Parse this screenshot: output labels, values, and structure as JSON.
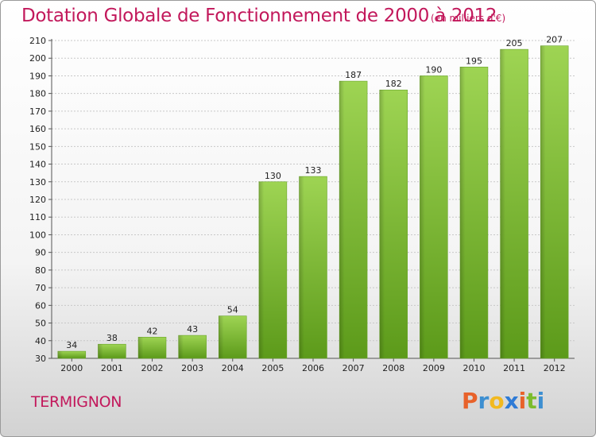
{
  "chart_data": {
    "type": "bar",
    "title": "Dotation Globale de Fonctionnement de 2000 à 2012",
    "subtitle": "(en milliers d'€)",
    "categories": [
      "2000",
      "2001",
      "2002",
      "2003",
      "2004",
      "2005",
      "2006",
      "2007",
      "2008",
      "2009",
      "2010",
      "2011",
      "2012"
    ],
    "values": [
      34,
      38,
      42,
      43,
      54,
      130,
      133,
      187,
      182,
      190,
      195,
      205,
      207
    ],
    "ylim": [
      30,
      210
    ],
    "yticks": [
      30,
      40,
      50,
      60,
      70,
      80,
      90,
      100,
      110,
      120,
      130,
      140,
      150,
      160,
      170,
      180,
      190,
      200,
      210
    ],
    "grid": true,
    "bar_color_top": "#9ed453",
    "bar_color_bottom": "#5c9a1a"
  },
  "footer": {
    "commune": "TERMIGNON",
    "logo_text": "Proxiti"
  },
  "colors": {
    "accent": "#c2185b",
    "logo": [
      "#e8622a",
      "#3d8fd1",
      "#f2b91f",
      "#2e7bd6",
      "#e8622a",
      "#7cbc2d",
      "#3d8fd1"
    ]
  }
}
